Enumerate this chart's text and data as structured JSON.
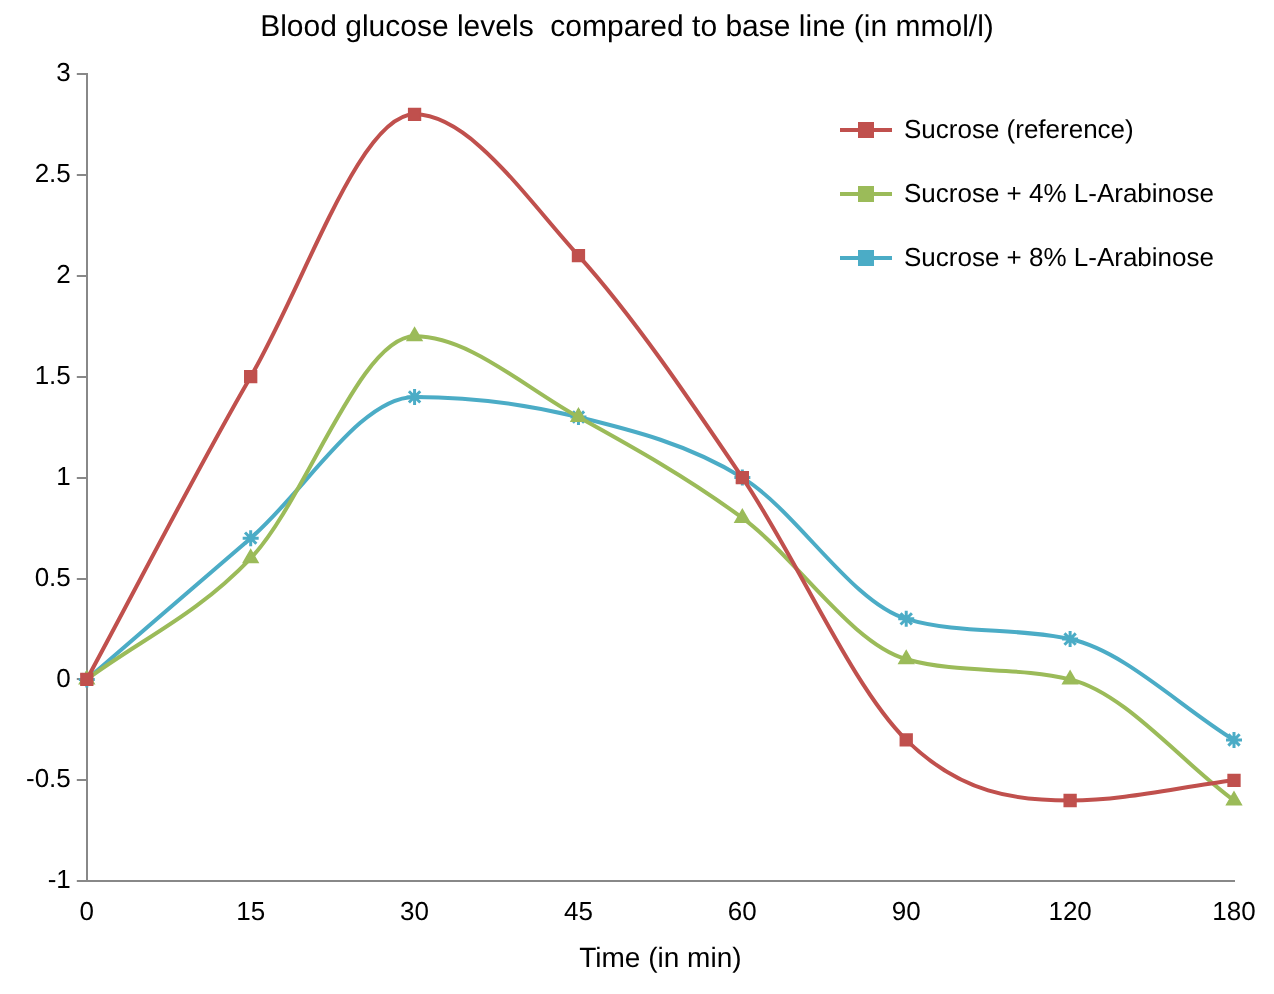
{
  "chart_data": {
    "type": "line",
    "title": "Blood glucose levels  compared to base line (in mmol/l)",
    "xlabel": "Time (in min)",
    "categories": [
      "0",
      "15",
      "30",
      "45",
      "60",
      "90",
      "120",
      "180"
    ],
    "series": [
      {
        "name": "Sucrose (reference)",
        "color": "#c0504d",
        "marker": "square",
        "values": [
          0,
          1.5,
          2.8,
          2.1,
          1.0,
          -0.3,
          -0.6,
          -0.5
        ]
      },
      {
        "name": "Sucrose + 4% L-Arabinose",
        "color": "#9bbb59",
        "marker": "triangle",
        "values": [
          0,
          0.6,
          1.7,
          1.3,
          0.8,
          0.1,
          0.0,
          -0.6
        ]
      },
      {
        "name": "Sucrose + 8% L-Arabinose",
        "color": "#4bacc6",
        "marker": "cross",
        "values": [
          0,
          0.7,
          1.4,
          1.3,
          1.0,
          0.3,
          0.2,
          -0.3
        ]
      }
    ],
    "ylim": [
      -1,
      3
    ],
    "yticks": [
      -1,
      -0.5,
      0,
      0.5,
      1,
      1.5,
      2,
      2.5,
      3
    ],
    "grid": false,
    "legend": "top right"
  }
}
